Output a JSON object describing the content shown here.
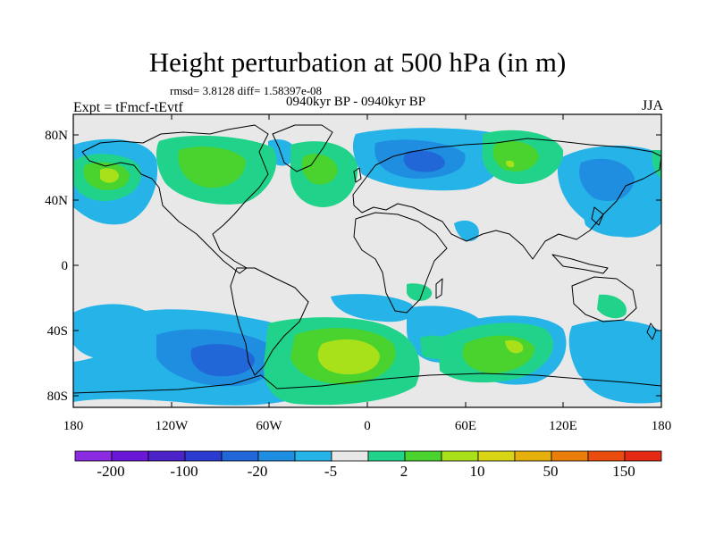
{
  "title": "Height perturbation at 500 hPa (in m)",
  "stats": "rmsd= 3.8128 diff= 1.58397e-08",
  "experiment": "Expt = tFmcf-tEvtf",
  "period": "0940kyr BP - 0940kyr BP",
  "season": "JJA",
  "lat_ticks": [
    "80N",
    "40N",
    "0",
    "40S",
    "80S"
  ],
  "lon_ticks": [
    "180",
    "120W",
    "60W",
    "0",
    "60E",
    "120E",
    "180"
  ],
  "colorbar": {
    "labels": [
      "-200",
      "-100",
      "-20",
      "-5",
      "2",
      "10",
      "50",
      "150"
    ],
    "colors": [
      "#8a2be2",
      "#6a18d8",
      "#4a22c8",
      "#2c3ad0",
      "#2167d8",
      "#1f8ee0",
      "#26b4e8",
      "#e8e8e8",
      "#21d38a",
      "#4ad22e",
      "#a8e11a",
      "#d9d414",
      "#e6b00c",
      "#ea7e0a",
      "#e94c0c",
      "#e42a14"
    ]
  },
  "colors": {
    "background": "#e8e8e8",
    "cyan": "#26b4e8",
    "blue": "#1f8ee0",
    "deep_blue": "#2167d8",
    "green": "#21d38a",
    "bright_green": "#4ad22e",
    "yellow_green": "#a8e11a"
  }
}
